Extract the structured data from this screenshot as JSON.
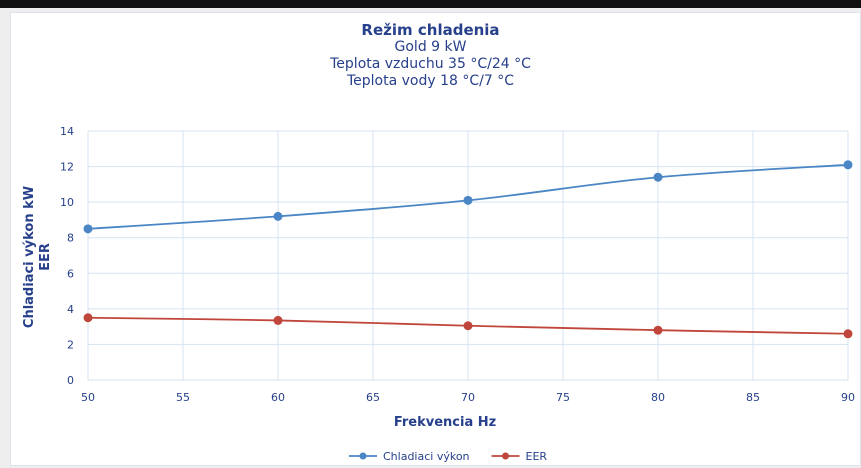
{
  "chart_data": {
    "type": "line",
    "title": "Režim chladenia",
    "subtitle_lines": [
      "Gold 9 kW",
      "Teplota vzduchu 35 °C/24 °C",
      "Teplota vody 18 °C/7 °C"
    ],
    "xlabel": "Frekvencia Hz",
    "ylabel_lines": [
      "Chladiaci výkon kW",
      "EER"
    ],
    "xlim": [
      50,
      90
    ],
    "ylim": [
      0,
      14
    ],
    "x_ticks": [
      "50",
      "55",
      "60",
      "65",
      "70",
      "75",
      "80",
      "85",
      "90"
    ],
    "y_ticks": [
      "0",
      "2",
      "4",
      "6",
      "8",
      "10",
      "12",
      "14"
    ],
    "grid": true,
    "legend_position": "bottom",
    "series": [
      {
        "name": "Chladiaci výkon",
        "color": "#4a86c5",
        "x": [
          50,
          60,
          70,
          80,
          90
        ],
        "y": [
          8.5,
          9.2,
          10.1,
          11.4,
          12.1
        ]
      },
      {
        "name": "EER",
        "color": "#c0463c",
        "x": [
          50,
          60,
          70,
          80,
          90
        ],
        "y": [
          3.5,
          3.35,
          3.05,
          2.8,
          2.6
        ]
      }
    ]
  },
  "colors": {
    "text": "#27408b",
    "grid": "#d6e3f1",
    "background": "#ffffff"
  }
}
